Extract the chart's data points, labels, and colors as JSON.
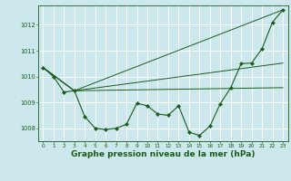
{
  "bg_color": "#cce8ec",
  "grid_color": "#ffffff",
  "line_color": "#1a5c1a",
  "marker_color": "#1a5c1a",
  "xlabel": "Graphe pression niveau de la mer (hPa)",
  "xlabel_fontsize": 6.5,
  "ylim": [
    1007.5,
    1012.75
  ],
  "xlim": [
    -0.5,
    23.5
  ],
  "yticks": [
    1008,
    1009,
    1010,
    1011,
    1012
  ],
  "xticks": [
    0,
    1,
    2,
    3,
    4,
    5,
    6,
    7,
    8,
    9,
    10,
    11,
    12,
    13,
    14,
    15,
    16,
    17,
    18,
    19,
    20,
    21,
    22,
    23
  ],
  "main_series": {
    "x": [
      0,
      1,
      2,
      3,
      4,
      5,
      6,
      7,
      8,
      9,
      10,
      11,
      12,
      13,
      14,
      15,
      16,
      17,
      18,
      19,
      20,
      21,
      22,
      23
    ],
    "y": [
      1010.35,
      1010.0,
      1009.4,
      1009.45,
      1008.45,
      1008.0,
      1007.95,
      1008.0,
      1008.15,
      1008.97,
      1008.87,
      1008.55,
      1008.5,
      1008.87,
      1007.85,
      1007.72,
      1008.08,
      1008.95,
      1009.57,
      1010.5,
      1010.52,
      1011.08,
      1012.1,
      1012.58
    ]
  },
  "fan_lines": [
    {
      "x": [
        0,
        3,
        23
      ],
      "y": [
        1010.35,
        1009.45,
        1012.58
      ]
    },
    {
      "x": [
        0,
        3,
        23
      ],
      "y": [
        1010.35,
        1009.45,
        1009.57
      ]
    },
    {
      "x": [
        0,
        3,
        23
      ],
      "y": [
        1010.35,
        1009.45,
        1010.52
      ]
    }
  ]
}
